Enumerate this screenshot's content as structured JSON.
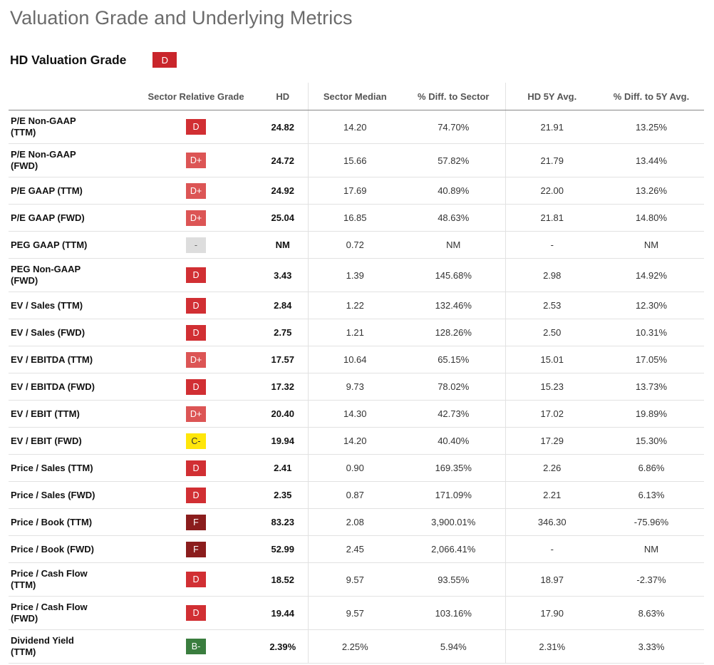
{
  "title": "Valuation Grade and Underlying Metrics",
  "grade": {
    "label": "HD Valuation Grade",
    "value": "D",
    "color": "#c9252b"
  },
  "colors": {
    "D": "#d12f33",
    "D+": "#dc5555",
    "-": "#dddddd",
    "C-": "#ffe60a",
    "F": "#8b1d1d",
    "B-": "#3a7d3e"
  },
  "headers": [
    "",
    "Sector Relative Grade",
    "HD",
    "Sector Median",
    "% Diff. to Sector",
    "HD 5Y Avg.",
    "% Diff. to 5Y Avg."
  ],
  "rows": [
    {
      "metric": [
        "P/E Non-GAAP",
        "(TTM)"
      ],
      "grade": "D",
      "hd": "24.82",
      "sector_median": "14.20",
      "diff_sector": "74.70%",
      "avg5y": "21.91",
      "diff_5y": "13.25%"
    },
    {
      "metric": [
        "P/E Non-GAAP",
        "(FWD)"
      ],
      "grade": "D+",
      "hd": "24.72",
      "sector_median": "15.66",
      "diff_sector": "57.82%",
      "avg5y": "21.79",
      "diff_5y": "13.44%"
    },
    {
      "metric": [
        "P/E GAAP (TTM)"
      ],
      "grade": "D+",
      "hd": "24.92",
      "sector_median": "17.69",
      "diff_sector": "40.89%",
      "avg5y": "22.00",
      "diff_5y": "13.26%"
    },
    {
      "metric": [
        "P/E GAAP (FWD)"
      ],
      "grade": "D+",
      "hd": "25.04",
      "sector_median": "16.85",
      "diff_sector": "48.63%",
      "avg5y": "21.81",
      "diff_5y": "14.80%"
    },
    {
      "metric": [
        "PEG GAAP (TTM)"
      ],
      "grade": "-",
      "hd": "NM",
      "sector_median": "0.72",
      "diff_sector": "NM",
      "avg5y": "-",
      "diff_5y": "NM"
    },
    {
      "metric": [
        "PEG Non-GAAP",
        "(FWD)"
      ],
      "grade": "D",
      "hd": "3.43",
      "sector_median": "1.39",
      "diff_sector": "145.68%",
      "avg5y": "2.98",
      "diff_5y": "14.92%"
    },
    {
      "metric": [
        "EV / Sales (TTM)"
      ],
      "grade": "D",
      "hd": "2.84",
      "sector_median": "1.22",
      "diff_sector": "132.46%",
      "avg5y": "2.53",
      "diff_5y": "12.30%"
    },
    {
      "metric": [
        "EV / Sales (FWD)"
      ],
      "grade": "D",
      "hd": "2.75",
      "sector_median": "1.21",
      "diff_sector": "128.26%",
      "avg5y": "2.50",
      "diff_5y": "10.31%"
    },
    {
      "metric": [
        "EV / EBITDA (TTM)"
      ],
      "grade": "D+",
      "hd": "17.57",
      "sector_median": "10.64",
      "diff_sector": "65.15%",
      "avg5y": "15.01",
      "diff_5y": "17.05%"
    },
    {
      "metric": [
        "EV / EBITDA (FWD)"
      ],
      "grade": "D",
      "hd": "17.32",
      "sector_median": "9.73",
      "diff_sector": "78.02%",
      "avg5y": "15.23",
      "diff_5y": "13.73%"
    },
    {
      "metric": [
        "EV / EBIT (TTM)"
      ],
      "grade": "D+",
      "hd": "20.40",
      "sector_median": "14.30",
      "diff_sector": "42.73%",
      "avg5y": "17.02",
      "diff_5y": "19.89%"
    },
    {
      "metric": [
        "EV / EBIT (FWD)"
      ],
      "grade": "C-",
      "hd": "19.94",
      "sector_median": "14.20",
      "diff_sector": "40.40%",
      "avg5y": "17.29",
      "diff_5y": "15.30%"
    },
    {
      "metric": [
        "Price / Sales (TTM)"
      ],
      "grade": "D",
      "hd": "2.41",
      "sector_median": "0.90",
      "diff_sector": "169.35%",
      "avg5y": "2.26",
      "diff_5y": "6.86%"
    },
    {
      "metric": [
        "Price / Sales (FWD)"
      ],
      "grade": "D",
      "hd": "2.35",
      "sector_median": "0.87",
      "diff_sector": "171.09%",
      "avg5y": "2.21",
      "diff_5y": "6.13%"
    },
    {
      "metric": [
        "Price / Book (TTM)"
      ],
      "grade": "F",
      "hd": "83.23",
      "sector_median": "2.08",
      "diff_sector": "3,900.01%",
      "avg5y": "346.30",
      "diff_5y": "-75.96%"
    },
    {
      "metric": [
        "Price / Book (FWD)"
      ],
      "grade": "F",
      "hd": "52.99",
      "sector_median": "2.45",
      "diff_sector": "2,066.41%",
      "avg5y": "-",
      "diff_5y": "NM"
    },
    {
      "metric": [
        "Price / Cash Flow",
        "(TTM)"
      ],
      "grade": "D",
      "hd": "18.52",
      "sector_median": "9.57",
      "diff_sector": "93.55%",
      "avg5y": "18.97",
      "diff_5y": "-2.37%"
    },
    {
      "metric": [
        "Price / Cash Flow",
        "(FWD)"
      ],
      "grade": "D",
      "hd": "19.44",
      "sector_median": "9.57",
      "diff_sector": "103.16%",
      "avg5y": "17.90",
      "diff_5y": "8.63%"
    },
    {
      "metric": [
        "Dividend Yield",
        "(TTM)"
      ],
      "grade": "B-",
      "hd": "2.39%",
      "sector_median": "2.25%",
      "diff_sector": "5.94%",
      "avg5y": "2.31%",
      "diff_5y": "3.33%"
    }
  ]
}
